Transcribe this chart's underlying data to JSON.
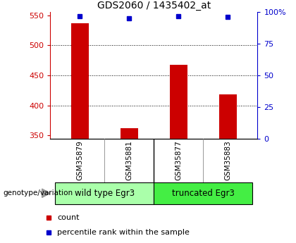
{
  "title": "GDS2060 / 1435402_at",
  "samples": [
    "GSM35879",
    "GSM35881",
    "GSM35877",
    "GSM35883"
  ],
  "bar_values": [
    537,
    362,
    468,
    418
  ],
  "percentile_values": [
    97,
    95,
    97,
    96
  ],
  "bar_color": "#cc0000",
  "dot_color": "#0000cc",
  "ylim_left": [
    345,
    555
  ],
  "ylim_right": [
    0,
    100
  ],
  "yticks_left": [
    350,
    400,
    450,
    500,
    550
  ],
  "yticks_right": [
    0,
    25,
    50,
    75,
    100
  ],
  "ytick_labels_right": [
    "0",
    "25",
    "50",
    "75",
    "100%"
  ],
  "grid_lines": [
    400,
    450,
    500
  ],
  "groups": [
    {
      "label": "wild type Egr3",
      "indices": [
        0,
        1
      ],
      "color": "#aaffaa"
    },
    {
      "label": "truncated Egr3",
      "indices": [
        2,
        3
      ],
      "color": "#44ee44"
    }
  ],
  "bar_width": 0.35,
  "xlabel_bottom": "genotype/variation",
  "legend_items": [
    {
      "label": "count",
      "color": "#cc0000"
    },
    {
      "label": "percentile rank within the sample",
      "color": "#0000cc"
    }
  ],
  "background_color": "#ffffff",
  "plot_bg_color": "#ffffff",
  "label_area_color": "#cccccc",
  "title_fontsize": 10,
  "tick_fontsize": 8,
  "legend_fontsize": 8
}
